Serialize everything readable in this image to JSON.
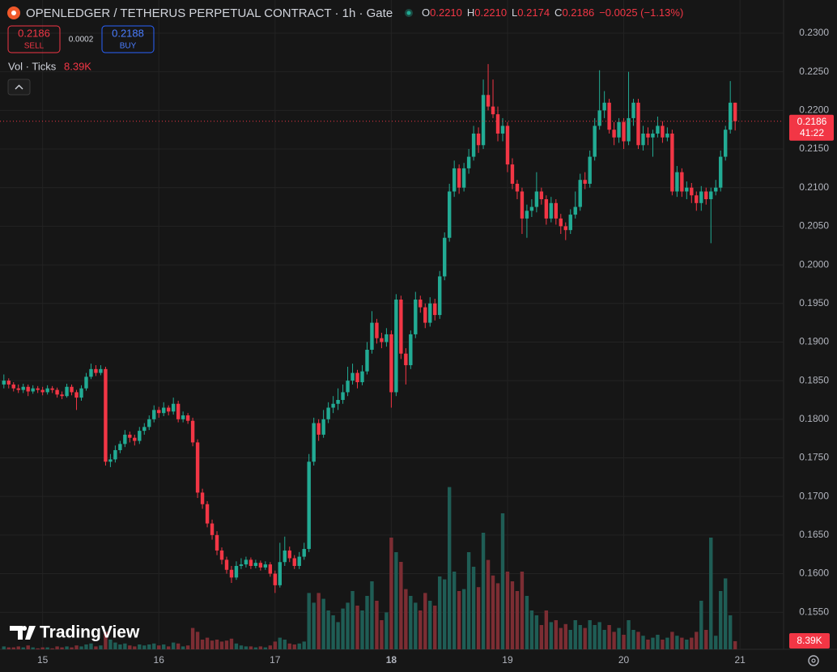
{
  "chart_data": {
    "type": "candlestick",
    "title": "OPENLEDGER / TETHERUS PERPETUAL CONTRACT · 1h · Gate",
    "ohlc": [
      {
        "key": "O",
        "text": "0.2210"
      },
      {
        "key": "H",
        "text": "0.2210"
      },
      {
        "key": "L",
        "text": "0.2174"
      },
      {
        "key": "C",
        "text": "0.2186"
      }
    ],
    "change": "−0.0025 (−1.13%)",
    "sell": {
      "price": "0.2186",
      "label": "SELL"
    },
    "spread": "0.0002",
    "buy": {
      "price": "0.2188",
      "label": "BUY"
    },
    "volume_legend": "Vol · Ticks",
    "last_volume": {
      "value": 8.39,
      "label": "8.39K"
    },
    "last_price": {
      "value": 0.2186,
      "label": "0.2186"
    },
    "countdown": "41:22",
    "watermark": "TradingView",
    "up_color": "#22ab94",
    "down_color": "#f23645",
    "up_volume_color": "#1f5d55",
    "down_volume_color": "#7c2d33",
    "grid": true,
    "xlim": [
      -0.8,
      160.5
    ],
    "xticks": [
      {
        "value": 8,
        "label": "15"
      },
      {
        "value": 32,
        "label": "16"
      },
      {
        "value": 56,
        "label": "17"
      },
      {
        "value": 80,
        "label": "18"
      },
      {
        "value": 104,
        "label": "19"
      },
      {
        "value": 128,
        "label": "20"
      },
      {
        "value": 152,
        "label": "21"
      }
    ],
    "ylim": [
      0.1502,
      0.2343
    ],
    "yticks": [
      {
        "value": 0.155,
        "label": "0.1550"
      },
      {
        "value": 0.16,
        "label": "0.1600"
      },
      {
        "value": 0.165,
        "label": "0.1650"
      },
      {
        "value": 0.17,
        "label": "0.1700"
      },
      {
        "value": 0.175,
        "label": "0.1750"
      },
      {
        "value": 0.18,
        "label": "0.1800"
      },
      {
        "value": 0.185,
        "label": "0.1850"
      },
      {
        "value": 0.19,
        "label": "0.1900"
      },
      {
        "value": 0.195,
        "label": "0.1950"
      },
      {
        "value": 0.2,
        "label": "0.2000"
      },
      {
        "value": 0.205,
        "label": "0.2050"
      },
      {
        "value": 0.21,
        "label": "0.2100"
      },
      {
        "value": 0.215,
        "label": "0.2150"
      },
      {
        "value": 0.22,
        "label": "0.2200"
      },
      {
        "value": 0.225,
        "label": "0.2250"
      },
      {
        "value": 0.23,
        "label": "0.2300"
      }
    ],
    "candles": [
      [
        0.1845,
        0.1858,
        0.184,
        0.185,
        3
      ],
      [
        0.185,
        0.1853,
        0.184,
        0.1845,
        2
      ],
      [
        0.1845,
        0.1848,
        0.1836,
        0.184,
        2
      ],
      [
        0.184,
        0.1845,
        0.1834,
        0.1838,
        3
      ],
      [
        0.1838,
        0.1846,
        0.1834,
        0.1842,
        2
      ],
      [
        0.1842,
        0.1845,
        0.183,
        0.1836,
        4
      ],
      [
        0.1836,
        0.1844,
        0.1833,
        0.184,
        2
      ],
      [
        0.184,
        0.1843,
        0.1834,
        0.1838,
        1
      ],
      [
        0.1838,
        0.1842,
        0.1831,
        0.1835,
        2
      ],
      [
        0.1835,
        0.1844,
        0.1832,
        0.184,
        2
      ],
      [
        0.184,
        0.1843,
        0.1834,
        0.1838,
        1
      ],
      [
        0.1838,
        0.1841,
        0.1828,
        0.1832,
        3
      ],
      [
        0.1832,
        0.1836,
        0.1826,
        0.183,
        2
      ],
      [
        0.183,
        0.1846,
        0.1828,
        0.1842,
        3
      ],
      [
        0.1842,
        0.1845,
        0.1831,
        0.1835,
        2
      ],
      [
        0.1835,
        0.1838,
        0.1812,
        0.1828,
        4
      ],
      [
        0.1828,
        0.1844,
        0.1824,
        0.184,
        3
      ],
      [
        0.184,
        0.186,
        0.1837,
        0.1855,
        5
      ],
      [
        0.1855,
        0.1872,
        0.1852,
        0.1865,
        6
      ],
      [
        0.1865,
        0.187,
        0.1856,
        0.186,
        3
      ],
      [
        0.186,
        0.187,
        0.1857,
        0.1865,
        4
      ],
      [
        0.1865,
        0.1868,
        0.174,
        0.1745,
        18
      ],
      [
        0.1745,
        0.1755,
        0.1738,
        0.1748,
        10
      ],
      [
        0.1748,
        0.1766,
        0.1744,
        0.176,
        7
      ],
      [
        0.176,
        0.1772,
        0.1756,
        0.1768,
        5
      ],
      [
        0.1768,
        0.1786,
        0.1764,
        0.178,
        6
      ],
      [
        0.178,
        0.1784,
        0.177,
        0.1776,
        4
      ],
      [
        0.1776,
        0.178,
        0.1766,
        0.1772,
        3
      ],
      [
        0.1772,
        0.179,
        0.1768,
        0.1785,
        5
      ],
      [
        0.1785,
        0.1795,
        0.178,
        0.179,
        4
      ],
      [
        0.179,
        0.1805,
        0.1786,
        0.18,
        5
      ],
      [
        0.18,
        0.1818,
        0.1796,
        0.1812,
        6
      ],
      [
        0.1812,
        0.1816,
        0.1802,
        0.1808,
        4
      ],
      [
        0.1808,
        0.1822,
        0.1804,
        0.1815,
        5
      ],
      [
        0.1815,
        0.1818,
        0.1805,
        0.181,
        3
      ],
      [
        0.181,
        0.1828,
        0.1806,
        0.182,
        7
      ],
      [
        0.182,
        0.1824,
        0.1796,
        0.18,
        6
      ],
      [
        0.18,
        0.181,
        0.1796,
        0.1805,
        3
      ],
      [
        0.1805,
        0.1808,
        0.1794,
        0.1798,
        4
      ],
      [
        0.1798,
        0.1802,
        0.1765,
        0.177,
        22
      ],
      [
        0.177,
        0.1774,
        0.1698,
        0.1705,
        18
      ],
      [
        0.1705,
        0.171,
        0.1684,
        0.169,
        10
      ],
      [
        0.169,
        0.1694,
        0.166,
        0.1665,
        12
      ],
      [
        0.1665,
        0.167,
        0.1644,
        0.165,
        9
      ],
      [
        0.165,
        0.1655,
        0.1624,
        0.163,
        10
      ],
      [
        0.163,
        0.1634,
        0.1612,
        0.1618,
        8
      ],
      [
        0.1618,
        0.1622,
        0.16,
        0.1605,
        9
      ],
      [
        0.1605,
        0.161,
        0.1588,
        0.1595,
        11
      ],
      [
        0.1595,
        0.1616,
        0.1592,
        0.161,
        6
      ],
      [
        0.161,
        0.162,
        0.1606,
        0.1612,
        4
      ],
      [
        0.1612,
        0.1622,
        0.1608,
        0.1618,
        3
      ],
      [
        0.1618,
        0.1621,
        0.1606,
        0.161,
        3
      ],
      [
        0.161,
        0.1618,
        0.1607,
        0.1614,
        2
      ],
      [
        0.1614,
        0.1617,
        0.1604,
        0.1608,
        3
      ],
      [
        0.1608,
        0.1616,
        0.1605,
        0.1612,
        2
      ],
      [
        0.1612,
        0.1615,
        0.1596,
        0.16,
        4
      ],
      [
        0.16,
        0.1604,
        0.1575,
        0.1585,
        8
      ],
      [
        0.1585,
        0.164,
        0.1582,
        0.1615,
        12
      ],
      [
        0.1615,
        0.1648,
        0.161,
        0.163,
        10
      ],
      [
        0.163,
        0.1635,
        0.1615,
        0.162,
        6
      ],
      [
        0.162,
        0.1624,
        0.1606,
        0.161,
        5
      ],
      [
        0.161,
        0.1628,
        0.1606,
        0.1622,
        6
      ],
      [
        0.1622,
        0.164,
        0.1618,
        0.1632,
        8
      ],
      [
        0.1632,
        0.1755,
        0.1628,
        0.1745,
        58
      ],
      [
        0.1745,
        0.1802,
        0.174,
        0.1795,
        48
      ],
      [
        0.1795,
        0.18,
        0.1772,
        0.178,
        58
      ],
      [
        0.178,
        0.1812,
        0.1776,
        0.18,
        52
      ],
      [
        0.18,
        0.1822,
        0.1795,
        0.1815,
        40
      ],
      [
        0.1815,
        0.183,
        0.1808,
        0.182,
        35
      ],
      [
        0.182,
        0.184,
        0.1812,
        0.1825,
        28
      ],
      [
        0.1825,
        0.1845,
        0.182,
        0.1835,
        42
      ],
      [
        0.1835,
        0.1868,
        0.183,
        0.185,
        48
      ],
      [
        0.185,
        0.1872,
        0.1845,
        0.186,
        60
      ],
      [
        0.186,
        0.1864,
        0.184,
        0.1848,
        45
      ],
      [
        0.1848,
        0.187,
        0.1844,
        0.1862,
        40
      ],
      [
        0.1862,
        0.19,
        0.1858,
        0.189,
        55
      ],
      [
        0.189,
        0.194,
        0.1885,
        0.1925,
        70
      ],
      [
        0.1925,
        0.193,
        0.1898,
        0.1905,
        50
      ],
      [
        0.1905,
        0.1912,
        0.1892,
        0.19,
        30
      ],
      [
        0.19,
        0.1918,
        0.1894,
        0.191,
        38
      ],
      [
        0.191,
        0.1915,
        0.1815,
        0.1835,
        115
      ],
      [
        0.1835,
        0.1962,
        0.183,
        0.1955,
        100
      ],
      [
        0.1955,
        0.196,
        0.1878,
        0.1885,
        90
      ],
      [
        0.1885,
        0.1892,
        0.1845,
        0.187,
        62
      ],
      [
        0.187,
        0.1915,
        0.1865,
        0.191,
        55
      ],
      [
        0.191,
        0.1965,
        0.1905,
        0.1955,
        48
      ],
      [
        0.1955,
        0.196,
        0.1938,
        0.1945,
        40
      ],
      [
        0.1945,
        0.195,
        0.1918,
        0.1925,
        58
      ],
      [
        0.1925,
        0.1958,
        0.192,
        0.195,
        50
      ],
      [
        0.195,
        0.1956,
        0.1928,
        0.1935,
        45
      ],
      [
        0.1935,
        0.1992,
        0.193,
        0.1985,
        75
      ],
      [
        0.1985,
        0.2042,
        0.198,
        0.2035,
        72
      ],
      [
        0.2035,
        0.2105,
        0.203,
        0.2095,
        167
      ],
      [
        0.2095,
        0.2135,
        0.2088,
        0.2125,
        80
      ],
      [
        0.2125,
        0.213,
        0.2092,
        0.21,
        60
      ],
      [
        0.21,
        0.2132,
        0.2095,
        0.2125,
        62
      ],
      [
        0.2125,
        0.215,
        0.2118,
        0.214,
        100
      ],
      [
        0.214,
        0.218,
        0.2135,
        0.217,
        85
      ],
      [
        0.217,
        0.2178,
        0.2145,
        0.2155,
        64
      ],
      [
        0.2155,
        0.224,
        0.215,
        0.222,
        120
      ],
      [
        0.222,
        0.226,
        0.22,
        0.2205,
        92
      ],
      [
        0.2205,
        0.224,
        0.219,
        0.2195,
        76
      ],
      [
        0.2195,
        0.2205,
        0.216,
        0.217,
        68
      ],
      [
        0.217,
        0.219,
        0.216,
        0.218,
        140
      ],
      [
        0.218,
        0.2185,
        0.212,
        0.213,
        80
      ],
      [
        0.213,
        0.2138,
        0.2098,
        0.2105,
        70
      ],
      [
        0.2105,
        0.211,
        0.2085,
        0.2095,
        60
      ],
      [
        0.2095,
        0.21,
        0.204,
        0.206,
        80
      ],
      [
        0.206,
        0.2078,
        0.2035,
        0.207,
        55
      ],
      [
        0.207,
        0.2085,
        0.2062,
        0.2075,
        40
      ],
      [
        0.2075,
        0.212,
        0.2068,
        0.2095,
        35
      ],
      [
        0.2095,
        0.21,
        0.2078,
        0.2085,
        25
      ],
      [
        0.2085,
        0.209,
        0.2052,
        0.206,
        40
      ],
      [
        0.206,
        0.2088,
        0.2055,
        0.208,
        28
      ],
      [
        0.208,
        0.2085,
        0.2052,
        0.206,
        30
      ],
      [
        0.206,
        0.2066,
        0.204,
        0.205,
        22
      ],
      [
        0.205,
        0.2055,
        0.2032,
        0.2045,
        26
      ],
      [
        0.2045,
        0.2072,
        0.204,
        0.2065,
        20
      ],
      [
        0.2065,
        0.2095,
        0.206,
        0.2075,
        30
      ],
      [
        0.2075,
        0.2118,
        0.207,
        0.211,
        25
      ],
      [
        0.211,
        0.212,
        0.2098,
        0.2105,
        22
      ],
      [
        0.2105,
        0.2148,
        0.21,
        0.214,
        30
      ],
      [
        0.214,
        0.219,
        0.2135,
        0.218,
        25
      ],
      [
        0.218,
        0.2252,
        0.2175,
        0.22,
        28
      ],
      [
        0.22,
        0.2225,
        0.219,
        0.221,
        20
      ],
      [
        0.221,
        0.2215,
        0.217,
        0.2175,
        25
      ],
      [
        0.2175,
        0.2185,
        0.2155,
        0.2165,
        18
      ],
      [
        0.2165,
        0.219,
        0.2158,
        0.2185,
        22
      ],
      [
        0.2185,
        0.219,
        0.215,
        0.216,
        15
      ],
      [
        0.216,
        0.225,
        0.2155,
        0.219,
        30
      ],
      [
        0.219,
        0.2215,
        0.218,
        0.221,
        20
      ],
      [
        0.221,
        0.2215,
        0.215,
        0.2155,
        18
      ],
      [
        0.2155,
        0.218,
        0.2148,
        0.217,
        14
      ],
      [
        0.217,
        0.2178,
        0.2155,
        0.2165,
        10
      ],
      [
        0.2165,
        0.2175,
        0.214,
        0.217,
        12
      ],
      [
        0.217,
        0.2192,
        0.2165,
        0.218,
        15
      ],
      [
        0.218,
        0.2186,
        0.2158,
        0.2165,
        10
      ],
      [
        0.2165,
        0.2178,
        0.216,
        0.217,
        12
      ],
      [
        0.217,
        0.2175,
        0.209,
        0.2095,
        18
      ],
      [
        0.2095,
        0.2128,
        0.2088,
        0.212,
        14
      ],
      [
        0.212,
        0.2125,
        0.2088,
        0.2095,
        12
      ],
      [
        0.2095,
        0.2108,
        0.2085,
        0.21,
        10
      ],
      [
        0.21,
        0.2106,
        0.208,
        0.209,
        12
      ],
      [
        0.209,
        0.2095,
        0.207,
        0.208,
        18
      ],
      [
        0.208,
        0.2102,
        0.207,
        0.2095,
        50
      ],
      [
        0.2095,
        0.21,
        0.2078,
        0.2085,
        20
      ],
      [
        0.2085,
        0.21,
        0.2028,
        0.2095,
        115
      ],
      [
        0.2095,
        0.211,
        0.209,
        0.21,
        14
      ],
      [
        0.21,
        0.2148,
        0.2095,
        0.214,
        60
      ],
      [
        0.214,
        0.218,
        0.2135,
        0.2175,
        73
      ],
      [
        0.2175,
        0.2238,
        0.217,
        0.221,
        35
      ],
      [
        0.221,
        0.221,
        0.2174,
        0.2186,
        8.39
      ]
    ]
  }
}
